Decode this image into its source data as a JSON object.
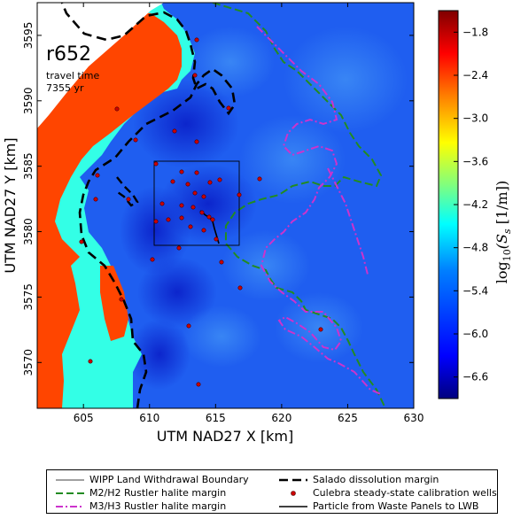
{
  "map": {
    "run_label": "r652",
    "travel_time_label": "travel time",
    "travel_time_value": "7355 yr",
    "xlabel": "UTM NAD27 X [km]",
    "ylabel": "UTM NAD27 Y [km]",
    "x_ticks": [
      "605",
      "610",
      "615",
      "620",
      "625",
      "630"
    ],
    "y_ticks": [
      "3570",
      "3575",
      "3580",
      "3585",
      "3590",
      "3595"
    ],
    "x_range": [
      601.5,
      630
    ],
    "y_range": [
      3566.5,
      3597.5
    ]
  },
  "colorbar": {
    "label_prefix": "log",
    "label_sub": "10",
    "label_main": "(S",
    "label_s_sub": "s",
    "label_suffix": " [1/m])",
    "ticks": [
      "−1.8",
      "−2.4",
      "−3.0",
      "−3.6",
      "−4.2",
      "−4.8",
      "−5.4",
      "−6.0",
      "−6.6"
    ],
    "range": [
      -6.9,
      -1.5
    ],
    "colors": [
      "#00007f",
      "#0000ff",
      "#007fff",
      "#00ffff",
      "#7fff7f",
      "#ffff00",
      "#ff7f00",
      "#ff0000",
      "#7f0000"
    ]
  },
  "legend": {
    "items": [
      {
        "label": "WIPP Land Withdrawal Boundary",
        "style": "thin-solid",
        "color": "#000000"
      },
      {
        "label": "Salado dissolution margin",
        "style": "thick-dash",
        "color": "#000000"
      },
      {
        "label": "M2/H2 Rustler halite margin",
        "style": "dash",
        "color": "#228b22"
      },
      {
        "label": "Culebra steady-state calibration wells",
        "style": "dot",
        "color": "#cc0000"
      },
      {
        "label": "M3/H3 Rustler halite margin",
        "style": "dash-dot",
        "color": "#cc33cc"
      },
      {
        "label": "Particle from Waste Panels to LWB",
        "style": "solid",
        "color": "#000000"
      }
    ]
  },
  "colors": {
    "background": "#1a4be6",
    "high_zone": "#ff4500",
    "mid_zone": "#33ffe6",
    "unsaturated": "#ffffff",
    "wells": "#cc0000"
  }
}
